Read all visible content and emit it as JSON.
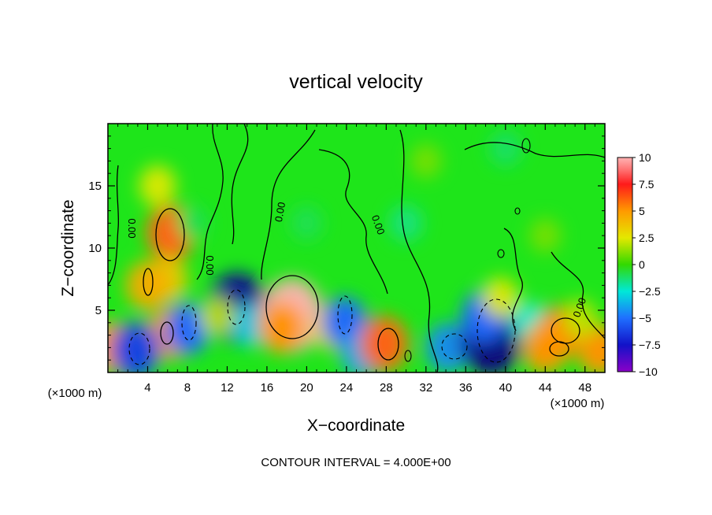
{
  "chart_data": {
    "type": "heatmap",
    "title": "vertical velocity",
    "xlabel": "X−coordinate",
    "ylabel": "Z−coordinate",
    "x_units": "(×1000 m)",
    "x_units_right": "(×1000 m)",
    "xlim": [
      0,
      50
    ],
    "ylim": [
      0,
      20
    ],
    "x_ticks": [
      4,
      8,
      12,
      16,
      20,
      24,
      28,
      32,
      36,
      40,
      44,
      48
    ],
    "y_ticks": [
      5,
      10,
      15
    ],
    "colorbar": {
      "ticks": [
        "10",
        "7.5",
        "5",
        "2.5",
        "0",
        "−2.5",
        "−5",
        "−7.5",
        "−10"
      ],
      "vmin": -10,
      "vmax": 10
    },
    "contour_label": "0.00",
    "footer": "CONTOUR INTERVAL = 4.000E+00",
    "features": [
      {
        "x": 6.3,
        "z": 11.2,
        "value": 6.0
      },
      {
        "x": 6.0,
        "z": 7.5,
        "value": 3.5
      },
      {
        "x": 4.0,
        "z": 7.0,
        "value": 4.5
      },
      {
        "x": 6.2,
        "z": 3.1,
        "value": 5.0
      },
      {
        "x": 0.3,
        "z": 2.0,
        "value": 5.0
      },
      {
        "x": 2.8,
        "z": 1.8,
        "value": -6.0
      },
      {
        "x": 8.0,
        "z": 3.5,
        "value": -5.0
      },
      {
        "x": 13.0,
        "z": 5.2,
        "value": -9.0
      },
      {
        "x": 14.3,
        "z": 3.8,
        "value": -3.0
      },
      {
        "x": 11.0,
        "z": 4.5,
        "value": 2.0
      },
      {
        "x": 18.5,
        "z": 4.6,
        "value": 10.0
      },
      {
        "x": 17.5,
        "z": 3.6,
        "value": 5.0
      },
      {
        "x": 22.5,
        "z": 3.5,
        "value": 3.0
      },
      {
        "x": 23.8,
        "z": 4.0,
        "value": -5.0
      },
      {
        "x": 25.5,
        "z": 1.5,
        "value": -4.0
      },
      {
        "x": 27.8,
        "z": 2.3,
        "value": 6.0
      },
      {
        "x": 34.2,
        "z": 2.0,
        "value": -4.5
      },
      {
        "x": 38.5,
        "z": 2.6,
        "value": -9.5
      },
      {
        "x": 37.8,
        "z": 4.5,
        "value": -5.0
      },
      {
        "x": 39.5,
        "z": 6.0,
        "value": 2.5
      },
      {
        "x": 42.5,
        "z": 4.0,
        "value": -2.5
      },
      {
        "x": 45.5,
        "z": 3.2,
        "value": 5.5
      },
      {
        "x": 44.0,
        "z": 2.0,
        "value": 5.0
      },
      {
        "x": 49.5,
        "z": 1.8,
        "value": 5.0
      },
      {
        "x": 47.5,
        "z": 4.3,
        "value": 2.0
      },
      {
        "x": 5.0,
        "z": 15.0,
        "value": 2.5
      },
      {
        "x": 30.0,
        "z": 12.0,
        "value": -1.5
      },
      {
        "x": 32.0,
        "z": 17.0,
        "value": 1.0
      },
      {
        "x": 40.0,
        "z": 18.0,
        "value": -1.2
      },
      {
        "x": 20.0,
        "z": 12.0,
        "value": -1.0
      },
      {
        "x": 8.5,
        "z": 12.0,
        "value": -1.0
      },
      {
        "x": 44.0,
        "z": 11.0,
        "value": 1.0
      }
    ]
  }
}
